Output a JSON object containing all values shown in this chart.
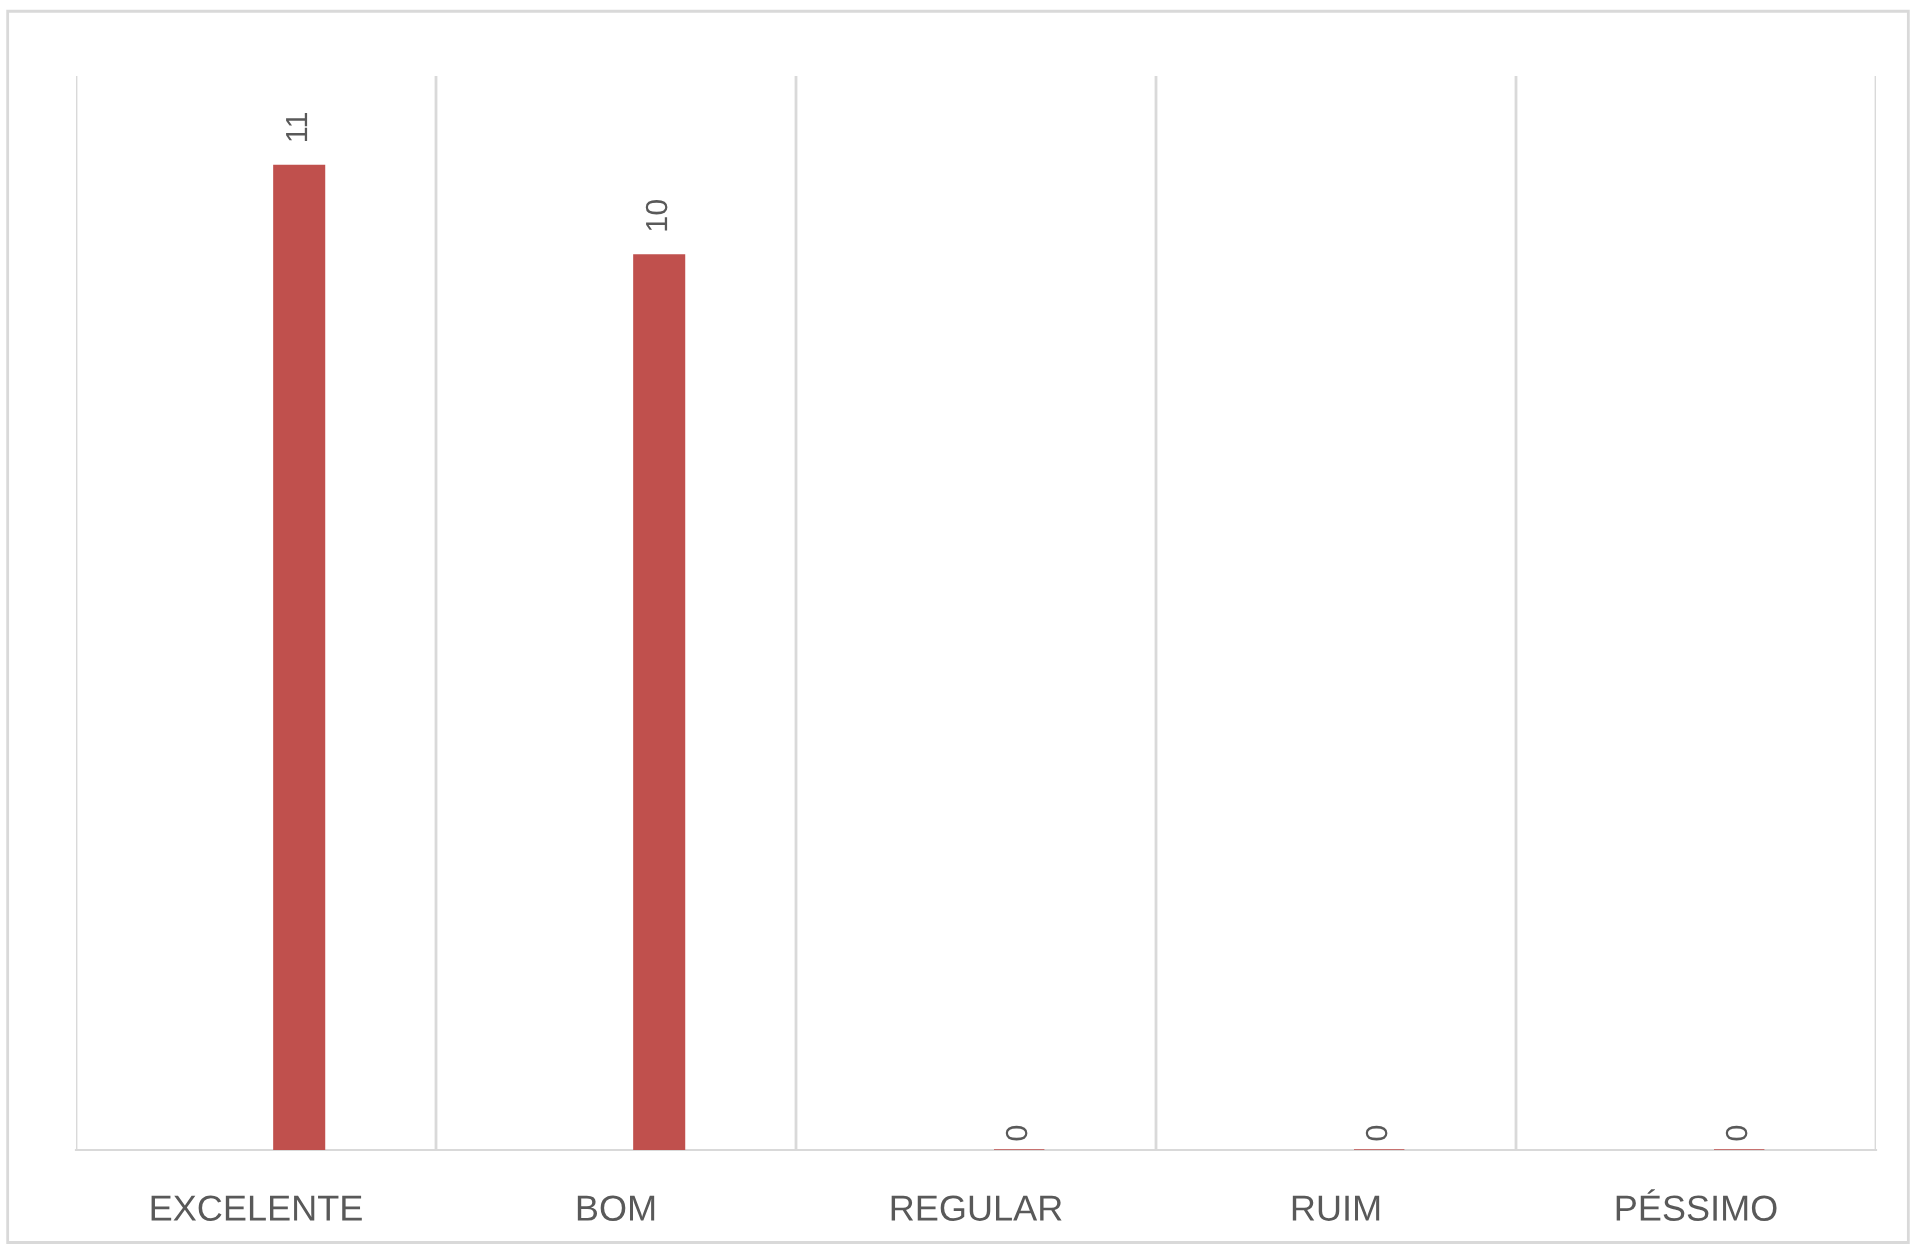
{
  "chart_data": {
    "type": "bar",
    "categories": [
      "EXCELENTE",
      "BOM",
      "REGULAR",
      "RUIM",
      "PÉSSIMO"
    ],
    "values": [
      11,
      10,
      0,
      0,
      0
    ],
    "color": "#c0504d",
    "ylim": [
      0,
      12
    ],
    "data_labels": true,
    "grid": "x",
    "tick_labels": "x"
  }
}
